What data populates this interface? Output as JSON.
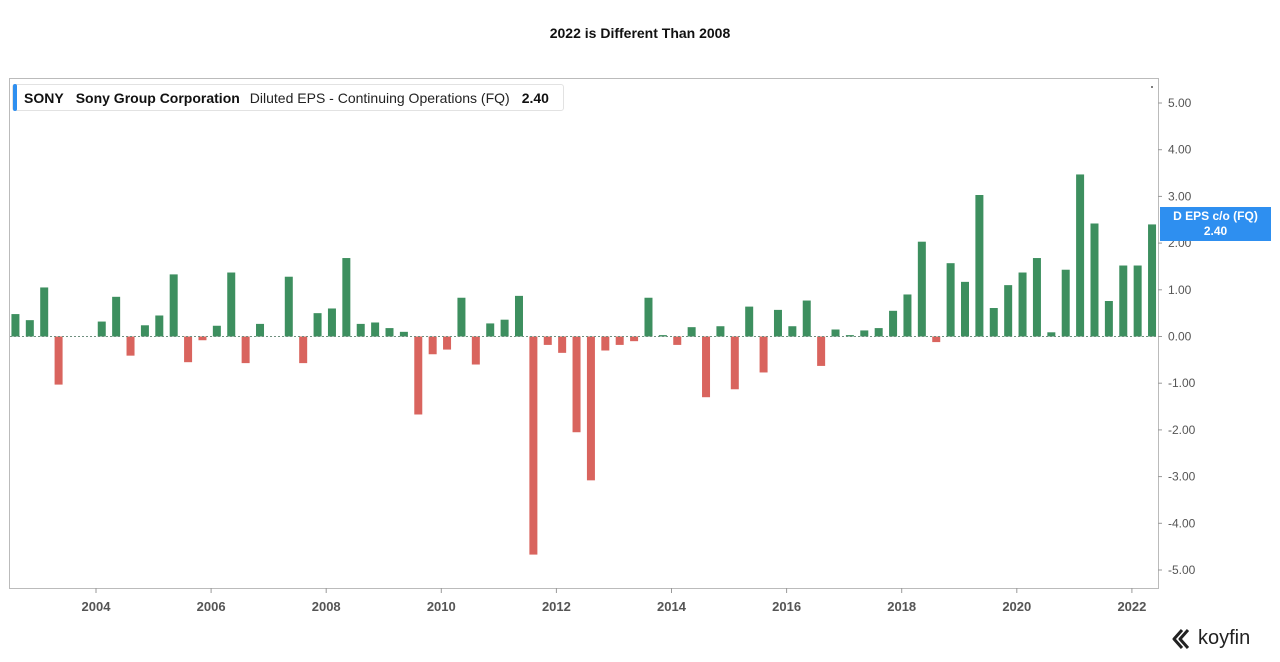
{
  "title": "2022 is Different Than 2008",
  "legend": {
    "ticker": "SONY",
    "company": "Sony Group Corporation",
    "metric": "Diluted EPS - Continuing Operations (FQ)",
    "value": "2.40"
  },
  "tag": {
    "label": "D EPS c/o (FQ)",
    "value": "2.40"
  },
  "logo": {
    "text": "koyfin",
    "icon": "koyfin-logo-icon"
  },
  "colors": {
    "positive": "#3d8f5f",
    "negative": "#d9645e",
    "accent": "#2e8ff0"
  },
  "chart_data": {
    "type": "bar",
    "x_start_year": 2002.6,
    "x_step_years": 0.25,
    "xlim": [
      2002.6,
      2022.35
    ],
    "x_ticks": [
      "2004",
      "2006",
      "2008",
      "2010",
      "2012",
      "2014",
      "2016",
      "2018",
      "2020",
      "2022"
    ],
    "ylim": [
      -5.5,
      5.5
    ],
    "y_ticks": [
      "5.00",
      "4.00",
      "3.00",
      "2.00",
      "1.00",
      "0.00",
      "-1.00",
      "-2.00",
      "-3.00",
      "-4.00",
      "-5.00"
    ],
    "grid": false,
    "values": [
      0.48,
      0.35,
      1.05,
      -1.03,
      0.0,
      0.0,
      0.32,
      0.85,
      -0.41,
      0.24,
      0.45,
      1.33,
      -0.55,
      -0.08,
      0.23,
      1.37,
      -0.57,
      0.27,
      0.0,
      1.28,
      -0.57,
      0.5,
      0.6,
      1.68,
      0.27,
      0.3,
      0.18,
      0.1,
      -1.67,
      -0.38,
      -0.28,
      0.83,
      -0.6,
      0.28,
      0.36,
      0.87,
      -4.67,
      -0.18,
      -0.35,
      -2.05,
      -3.08,
      -0.3,
      -0.18,
      -0.1,
      0.83,
      0.03,
      -0.18,
      0.2,
      -1.3,
      0.22,
      -1.13,
      0.64,
      -0.77,
      0.57,
      0.22,
      0.77,
      -0.63,
      0.15,
      0.03,
      0.13,
      0.18,
      0.55,
      0.9,
      2.03,
      -0.12,
      1.57,
      1.17,
      3.03,
      0.61,
      1.1,
      1.37,
      1.68,
      0.09,
      1.43,
      3.47,
      2.42,
      0.76,
      1.52,
      1.52,
      2.4
    ]
  }
}
